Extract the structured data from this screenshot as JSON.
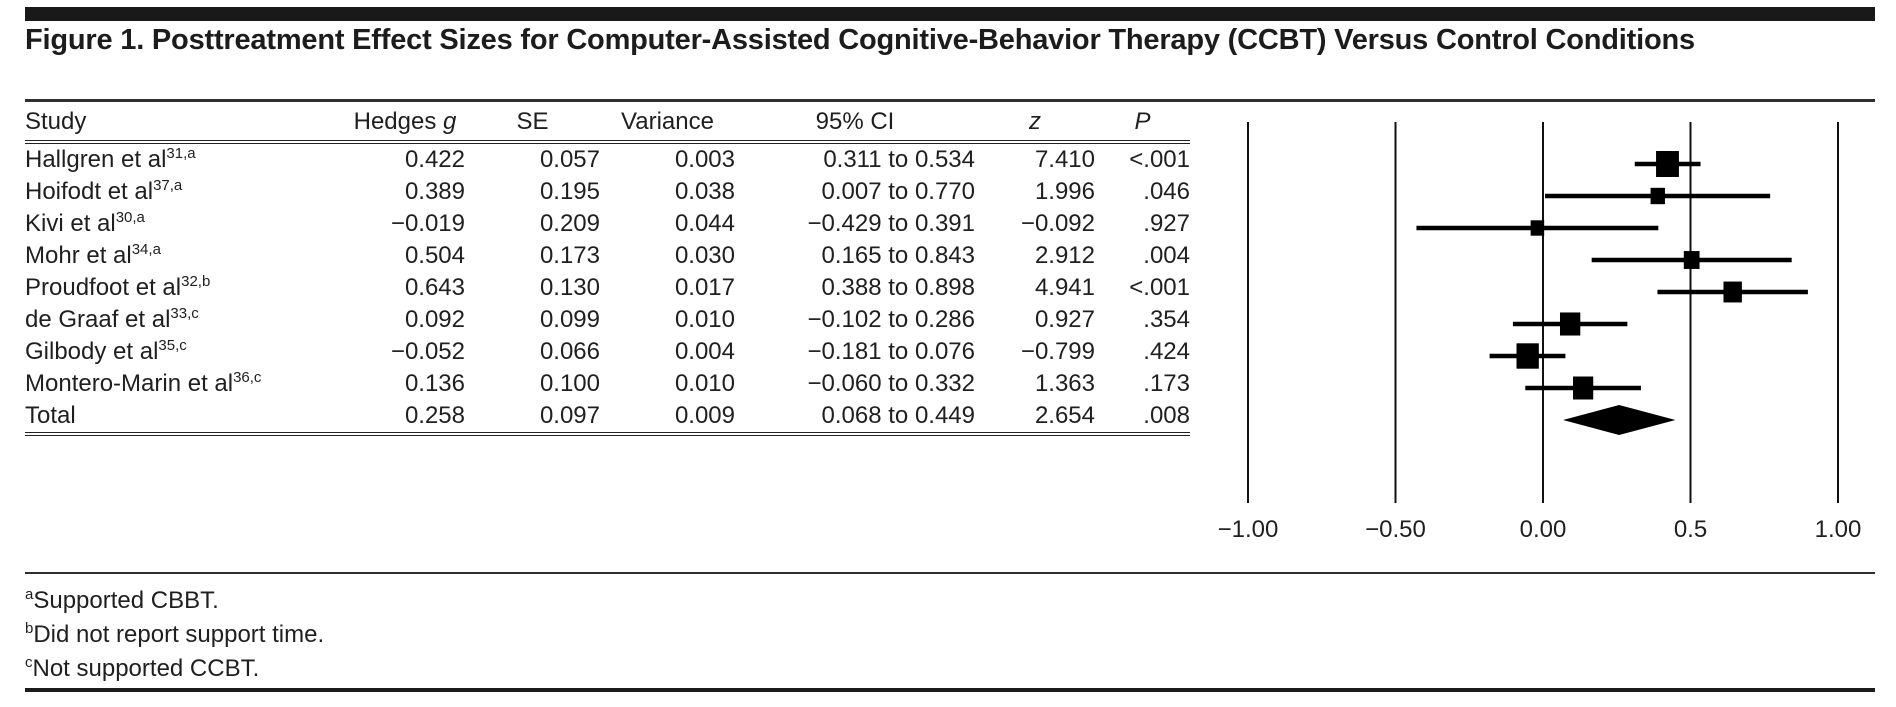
{
  "figure": {
    "title": "Figure 1. Posttreatment Effect Sizes for Computer-Assisted Cognitive-Behavior Therapy (CCBT) Versus Control Conditions"
  },
  "colors": {
    "ink": "#1f1f1f",
    "rule_bar": "#191919",
    "marker": "#000000"
  },
  "table": {
    "columns": [
      {
        "key": "study",
        "label": "Study",
        "italic": ""
      },
      {
        "key": "g",
        "label": "Hedges ",
        "italic": "g"
      },
      {
        "key": "se",
        "label": "SE",
        "italic": ""
      },
      {
        "key": "variance",
        "label": "Variance",
        "italic": ""
      },
      {
        "key": "ci",
        "label": "95% CI",
        "italic": ""
      },
      {
        "key": "z",
        "label": "",
        "italic": "z"
      },
      {
        "key": "p",
        "label": "",
        "italic": "P"
      }
    ],
    "rows": [
      {
        "study": "Hallgren et al",
        "sup": "31,a",
        "g": "0.422",
        "se": "0.057",
        "variance": "0.003",
        "ci": "0.311 to 0.534",
        "z": "7.410",
        "p": "<.001"
      },
      {
        "study": "Hoifodt et al",
        "sup": "37,a",
        "g": "0.389",
        "se": "0.195",
        "variance": "0.038",
        "ci": "0.007 to 0.770",
        "z": "1.996",
        "p": ".046"
      },
      {
        "study": "Kivi et al",
        "sup": "30,a",
        "g": "−0.019",
        "se": "0.209",
        "variance": "0.044",
        "ci": "−0.429 to 0.391",
        "z": "−0.092",
        "p": ".927"
      },
      {
        "study": "Mohr et al",
        "sup": "34,a",
        "g": "0.504",
        "se": "0.173",
        "variance": "0.030",
        "ci": "0.165 to 0.843",
        "z": "2.912",
        "p": ".004"
      },
      {
        "study": "Proudfoot et al",
        "sup": "32,b",
        "g": "0.643",
        "se": "0.130",
        "variance": "0.017",
        "ci": "0.388 to 0.898",
        "z": "4.941",
        "p": "<.001"
      },
      {
        "study": "de Graaf et al",
        "sup": "33,c",
        "g": "0.092",
        "se": "0.099",
        "variance": "0.010",
        "ci": "−0.102 to 0.286",
        "z": "0.927",
        "p": ".354"
      },
      {
        "study": "Gilbody et al",
        "sup": "35,c",
        "g": "−0.052",
        "se": "0.066",
        "variance": "0.004",
        "ci": "−0.181 to 0.076",
        "z": "−0.799",
        "p": ".424"
      },
      {
        "study": "Montero-Marin et al",
        "sup": "36,c",
        "g": "0.136",
        "se": "0.100",
        "variance": "0.010",
        "ci": "−0.060 to 0.332",
        "z": "1.363",
        "p": ".173"
      },
      {
        "study": "Total",
        "sup": "",
        "g": "0.258",
        "se": "0.097",
        "variance": "0.009",
        "ci": "0.068 to 0.449",
        "z": "2.654",
        "p": ".008"
      }
    ]
  },
  "footnotes": [
    {
      "mark": "a",
      "text": "Supported CBBT."
    },
    {
      "mark": "b",
      "text": "Did not report support time."
    },
    {
      "mark": "c",
      "text": "Not supported CCBT."
    }
  ],
  "chart_data": {
    "type": "forest",
    "title": "Posttreatment effect sizes (Hedges g) for CCBT vs control, with 95% CI",
    "xlim": [
      -1.0,
      1.0
    ],
    "grid": "vertical-lines-at-ticks",
    "x_ticks": {
      "values": [
        -1.0,
        -0.5,
        0.0,
        0.5,
        1.0
      ],
      "labels": [
        "−1.00",
        "−0.50",
        "0.00",
        "0.5",
        "1.00"
      ]
    },
    "studies": [
      {
        "label": "Hallgren et al 31,a",
        "g": 0.422,
        "se": 0.057,
        "ci_low": 0.311,
        "ci_high": 0.534
      },
      {
        "label": "Hoifodt et al 37,a",
        "g": 0.389,
        "se": 0.195,
        "ci_low": 0.007,
        "ci_high": 0.77
      },
      {
        "label": "Kivi et al 30,a",
        "g": -0.019,
        "se": 0.209,
        "ci_low": -0.429,
        "ci_high": 0.391
      },
      {
        "label": "Mohr et al 34,a",
        "g": 0.504,
        "se": 0.173,
        "ci_low": 0.165,
        "ci_high": 0.843
      },
      {
        "label": "Proudfoot et al 32,b",
        "g": 0.643,
        "se": 0.13,
        "ci_low": 0.388,
        "ci_high": 0.898
      },
      {
        "label": "de Graaf et al 33,c",
        "g": 0.092,
        "se": 0.099,
        "ci_low": -0.102,
        "ci_high": 0.286
      },
      {
        "label": "Gilbody et al 35,c",
        "g": -0.052,
        "se": 0.066,
        "ci_low": -0.181,
        "ci_high": 0.076
      },
      {
        "label": "Montero-Marin et al 36,c",
        "g": 0.136,
        "se": 0.1,
        "ci_low": -0.06,
        "ci_high": 0.332
      }
    ],
    "total": {
      "label": "Total",
      "g": 0.258,
      "se": 0.097,
      "ci_low": 0.068,
      "ci_high": 0.449
    },
    "marker_color": "#000000"
  }
}
